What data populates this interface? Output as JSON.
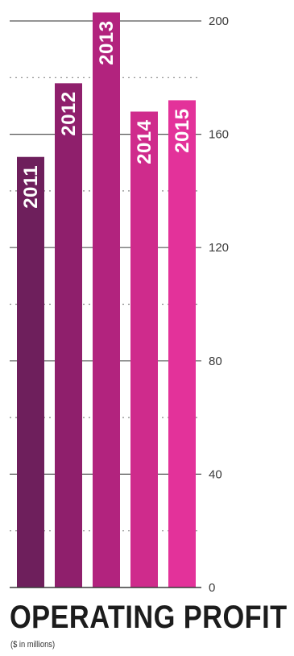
{
  "chart_data": {
    "type": "bar",
    "title": "OPERATING PROFIT",
    "subtitle": "($ in millions)",
    "categories": [
      "2011",
      "2012",
      "2013",
      "2014",
      "2015"
    ],
    "values": [
      152,
      178,
      203,
      168,
      172
    ],
    "colors": [
      "#6e1f5c",
      "#8f1f6c",
      "#b2237e",
      "#cf2b8c",
      "#e3329a"
    ],
    "yticks": [
      0,
      40,
      80,
      120,
      160,
      200
    ],
    "ylim": [
      0,
      200
    ],
    "grid": "dotted-at-20s"
  }
}
